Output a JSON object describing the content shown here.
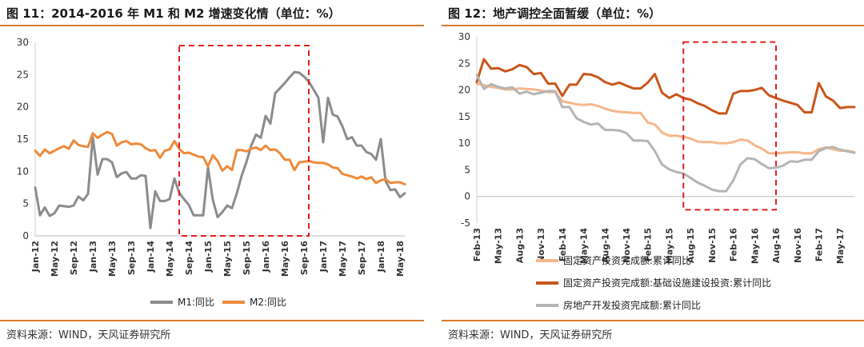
{
  "left": {
    "title": "图 11：2014-2016 年 M1 和 M2 增速变化情（单位：%）",
    "source": "资料来源：WIND，天风证券研究所"
  },
  "right": {
    "title": "图 12：地产调控全面暂缓（单位：%）",
    "source": "资料来源：WIND，天风证券研究所"
  },
  "colors": {
    "accent_rule": "#d97b2b",
    "m1": "#8c8c8c",
    "m2": "#ef8a3a",
    "fai_total": "#f6b78c",
    "fai_infra": "#c8571b",
    "real_estate": "#b5b5b5",
    "highlight_box": "#e02020"
  },
  "chart_data": [
    {
      "type": "line",
      "ylim": [
        0,
        30
      ],
      "yticks": [
        "0",
        "5",
        "10",
        "15",
        "20",
        "25",
        "30"
      ],
      "xticks": [
        "Jan-12",
        "May-12",
        "Sep-12",
        "Jan-13",
        "May-13",
        "Sep-13",
        "Jan-14",
        "May-14",
        "Sep-14",
        "Jan-15",
        "May-15",
        "Sep-15",
        "Jan-16",
        "May-16",
        "Sep-16",
        "Jan-17",
        "May-17",
        "Sep-17",
        "Jan-18",
        "May-18"
      ],
      "x": [
        "Jan-12",
        "Feb-12",
        "Mar-12",
        "Apr-12",
        "May-12",
        "Jun-12",
        "Jul-12",
        "Aug-12",
        "Sep-12",
        "Oct-12",
        "Nov-12",
        "Dec-12",
        "Jan-13",
        "Feb-13",
        "Mar-13",
        "Apr-13",
        "May-13",
        "Jun-13",
        "Jul-13",
        "Aug-13",
        "Sep-13",
        "Oct-13",
        "Nov-13",
        "Dec-13",
        "Jan-14",
        "Feb-14",
        "Mar-14",
        "Apr-14",
        "May-14",
        "Jun-14",
        "Jul-14",
        "Aug-14",
        "Sep-14",
        "Oct-14",
        "Nov-14",
        "Dec-14",
        "Jan-15",
        "Feb-15",
        "Mar-15",
        "Apr-15",
        "May-15",
        "Jun-15",
        "Jul-15",
        "Aug-15",
        "Sep-15",
        "Oct-15",
        "Nov-15",
        "Dec-15",
        "Jan-16",
        "Feb-16",
        "Mar-16",
        "Apr-16",
        "May-16",
        "Jun-16",
        "Jul-16",
        "Aug-16",
        "Sep-16",
        "Oct-16",
        "Nov-16",
        "Dec-16",
        "Jan-17",
        "Feb-17",
        "Mar-17",
        "Apr-17",
        "May-17",
        "Jun-17",
        "Jul-17",
        "Aug-17",
        "Sep-17",
        "Oct-17",
        "Nov-17",
        "Dec-17",
        "Jan-18",
        "Feb-18",
        "Mar-18",
        "Apr-18",
        "May-18",
        "Jun-18"
      ],
      "series": [
        {
          "name": "M1:同比",
          "colorKey": "m1",
          "values": [
            7.5,
            3.2,
            4.4,
            3.1,
            3.5,
            4.7,
            4.6,
            4.5,
            4.7,
            6.1,
            5.5,
            6.5,
            15.3,
            9.5,
            11.9,
            11.9,
            11.4,
            9.1,
            9.7,
            9.9,
            8.9,
            8.9,
            9.4,
            9.3,
            1.2,
            6.9,
            5.4,
            5.4,
            5.7,
            8.9,
            6.7,
            5.7,
            4.8,
            3.2,
            3.2,
            3.2,
            10.6,
            5.6,
            2.9,
            3.7,
            4.7,
            4.3,
            6.6,
            9.3,
            11.4,
            14.0,
            15.7,
            15.2,
            18.6,
            17.4,
            22.1,
            22.9,
            23.7,
            24.6,
            25.4,
            25.3,
            24.7,
            23.9,
            22.7,
            21.4,
            14.5,
            21.4,
            18.8,
            18.5,
            17.0,
            15.0,
            15.3,
            14.0,
            14.0,
            13.0,
            12.7,
            11.8,
            15.0,
            8.5,
            7.1,
            7.2,
            6.0,
            6.6
          ]
        },
        {
          "name": "M2:同比",
          "colorKey": "m2",
          "values": [
            13.2,
            12.4,
            13.4,
            12.8,
            13.2,
            13.6,
            13.9,
            13.5,
            14.8,
            14.1,
            13.9,
            13.8,
            15.9,
            15.2,
            15.7,
            16.1,
            15.8,
            14.0,
            14.5,
            14.7,
            14.2,
            14.3,
            14.2,
            13.6,
            13.2,
            13.3,
            12.1,
            13.2,
            13.4,
            14.7,
            13.5,
            12.8,
            12.9,
            12.6,
            12.3,
            12.2,
            10.8,
            12.5,
            11.6,
            10.1,
            10.8,
            10.2,
            13.3,
            13.3,
            13.1,
            13.5,
            13.7,
            13.3,
            14.0,
            13.3,
            13.4,
            12.8,
            11.8,
            11.8,
            10.2,
            11.4,
            11.5,
            11.6,
            11.4,
            11.3,
            11.3,
            11.1,
            10.6,
            10.5,
            9.6,
            9.4,
            9.2,
            8.9,
            9.2,
            8.8,
            9.1,
            8.2,
            8.6,
            8.8,
            8.2,
            8.3,
            8.3,
            8.0
          ]
        }
      ]
    },
    {
      "type": "line",
      "ylim": [
        -5,
        30
      ],
      "yticks": [
        "-5",
        "0",
        "5",
        "10",
        "15",
        "20",
        "25",
        "30"
      ],
      "xticks": [
        "Feb-13",
        "May-13",
        "Aug-13",
        "Nov-13",
        "Feb-14",
        "May-14",
        "Aug-14",
        "Nov-14",
        "Feb-15",
        "May-15",
        "Aug-15",
        "Nov-15",
        "Feb-16",
        "May-16",
        "Aug-16",
        "Nov-16",
        "Feb-17",
        "May-17"
      ],
      "x": [
        "Feb-13",
        "Mar-13",
        "Apr-13",
        "May-13",
        "Jun-13",
        "Jul-13",
        "Aug-13",
        "Sep-13",
        "Oct-13",
        "Nov-13",
        "Dec-13",
        "Jan-14",
        "Feb-14",
        "Mar-14",
        "Apr-14",
        "May-14",
        "Jun-14",
        "Jul-14",
        "Aug-14",
        "Sep-14",
        "Oct-14",
        "Nov-14",
        "Dec-14",
        "Jan-15",
        "Feb-15",
        "Mar-15",
        "Apr-15",
        "May-15",
        "Jun-15",
        "Jul-15",
        "Aug-15",
        "Sep-15",
        "Oct-15",
        "Nov-15",
        "Dec-15",
        "Jan-16",
        "Feb-16",
        "Mar-16",
        "Apr-16",
        "May-16",
        "Jun-16",
        "Jul-16",
        "Aug-16",
        "Sep-16",
        "Oct-16",
        "Nov-16",
        "Dec-16",
        "Jan-17",
        "Feb-17",
        "Mar-17",
        "Apr-17",
        "May-17",
        "Jun-17",
        "Jul-17"
      ],
      "series": [
        {
          "name": "固定资产投资完成额:累计同比",
          "colorKey": "fai_total",
          "values": [
            21.2,
            20.9,
            20.6,
            20.4,
            20.1,
            20.1,
            20.3,
            20.2,
            20.1,
            19.9,
            19.6,
            19.6,
            17.9,
            17.6,
            17.3,
            17.2,
            17.3,
            17.0,
            16.5,
            16.1,
            15.9,
            15.8,
            15.7,
            15.7,
            13.9,
            13.5,
            12.0,
            11.4,
            11.4,
            11.2,
            10.9,
            10.3,
            10.2,
            10.2,
            10.0,
            10.0,
            10.2,
            10.7,
            10.5,
            9.6,
            9.0,
            8.1,
            8.1,
            8.2,
            8.3,
            8.3,
            8.1,
            8.1,
            8.9,
            9.2,
            8.9,
            8.6,
            8.6,
            8.3
          ]
        },
        {
          "name": "固定资产投资完成额:基础设施建设投资:累计同比",
          "colorKey": "fai_infra",
          "values": [
            21.5,
            25.8,
            24.0,
            24.1,
            23.5,
            23.9,
            24.7,
            24.3,
            23.0,
            23.2,
            21.2,
            21.2,
            18.9,
            21.0,
            21.0,
            23.0,
            22.9,
            22.4,
            21.5,
            21.0,
            21.4,
            20.8,
            20.3,
            20.3,
            21.4,
            23.0,
            19.5,
            18.5,
            19.2,
            18.5,
            18.2,
            17.5,
            17.0,
            16.2,
            15.6,
            15.6,
            19.3,
            19.8,
            19.8,
            20.0,
            20.4,
            19.0,
            18.5,
            18.0,
            17.6,
            17.2,
            15.8,
            15.8,
            21.3,
            18.8,
            18.0,
            16.6,
            16.8,
            16.8
          ]
        },
        {
          "name": "房地产开发投资完成额:累计同比",
          "colorKey": "real_estate",
          "values": [
            22.8,
            20.2,
            21.1,
            20.6,
            20.3,
            20.5,
            19.3,
            19.7,
            19.2,
            19.5,
            19.8,
            19.8,
            16.8,
            16.8,
            14.7,
            14.0,
            13.5,
            13.7,
            12.5,
            12.5,
            12.4,
            11.9,
            10.5,
            10.5,
            10.4,
            8.5,
            6.0,
            5.1,
            4.6,
            4.3,
            3.5,
            2.6,
            2.0,
            1.3,
            1.0,
            1.0,
            3.0,
            6.0,
            7.2,
            7.0,
            6.1,
            5.3,
            5.4,
            5.8,
            6.6,
            6.5,
            6.9,
            6.9,
            8.5,
            9.1,
            9.3,
            8.8,
            8.5,
            8.2
          ]
        }
      ]
    }
  ]
}
